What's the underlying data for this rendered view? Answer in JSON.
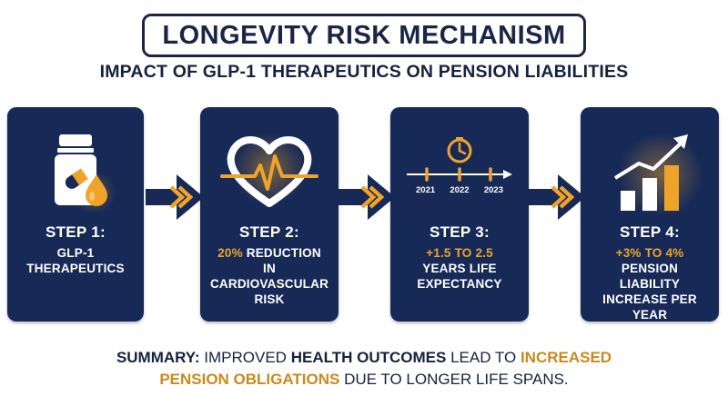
{
  "title": "LONGEVITY RISK MECHANISM",
  "subtitle": "IMPACT OF GLP-1 THERAPEUTICS ON PENSION LIABILITIES",
  "colors": {
    "card": "#172a57",
    "accent": "#f0a32a",
    "arrow": "#172a57"
  },
  "steps": [
    {
      "title": "STEP 1:",
      "lines": [
        "GLP-1",
        "THERAPEUTICS"
      ],
      "icon": "pill-bottle-icon"
    },
    {
      "title": "STEP 2:",
      "accent": "20%",
      "lines": [
        "REDUCTION",
        "IN",
        "CARDIOVASCULAR",
        "RISK"
      ],
      "icon": "heartbeat-icon"
    },
    {
      "title": "STEP 3:",
      "accent": "+1.5 TO 2.5",
      "lines": [
        "YEARS LIFE",
        "EXPECTANCY"
      ],
      "icon": "clock-timeline-icon",
      "timeline_years": [
        "2021",
        "2022",
        "2023"
      ]
    },
    {
      "title": "STEP 4:",
      "accent": "+3% TO 4%",
      "lines": [
        "PENSION",
        "LIABILITY",
        "INCREASE PER YEAR"
      ],
      "icon": "rising-bar-chart-icon"
    }
  ],
  "summary": {
    "label": "SUMMARY:",
    "part1": "IMPROVED",
    "part2": "HEALTH OUTCOMES",
    "part3": "LEAD TO",
    "part4": "INCREASED",
    "part5": "PENSION OBLIGATIONS",
    "part6": "DUE TO LONGER LIFE SPANS."
  }
}
